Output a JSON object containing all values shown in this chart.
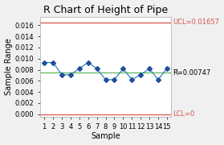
{
  "title": "R Chart of Height of Pipe",
  "xlabel": "Sample",
  "ylabel": "Sample Range",
  "x": [
    1,
    2,
    3,
    4,
    5,
    6,
    7,
    8,
    9,
    10,
    11,
    12,
    13,
    14,
    15
  ],
  "y": [
    0.0093,
    0.0093,
    0.0071,
    0.0071,
    0.0082,
    0.0093,
    0.0082,
    0.0062,
    0.0062,
    0.0082,
    0.0062,
    0.0071,
    0.0082,
    0.0062,
    0.0082
  ],
  "UCL": 0.01657,
  "CL": 0.00747,
  "LCL": 0,
  "UCL_label": "UCL=0.01657",
  "CL_label": "R̅=0.00747",
  "LCL_label": "LCL=0",
  "line_color": "#1f77b4",
  "marker_color": "#1f4fa0",
  "ucl_color": "#d9534f",
  "cl_color": "#5cb85c",
  "lcl_color": "#d9534f",
  "ylim": [
    -0.0005,
    0.0175
  ],
  "yticks": [
    0.0,
    0.002,
    0.004,
    0.006,
    0.008,
    0.01,
    0.012,
    0.014,
    0.016
  ],
  "bg_color": "#f0f0f0",
  "plot_bg_color": "#ffffff",
  "title_fontsize": 9,
  "label_fontsize": 7,
  "tick_fontsize": 6,
  "annot_fontsize": 6
}
